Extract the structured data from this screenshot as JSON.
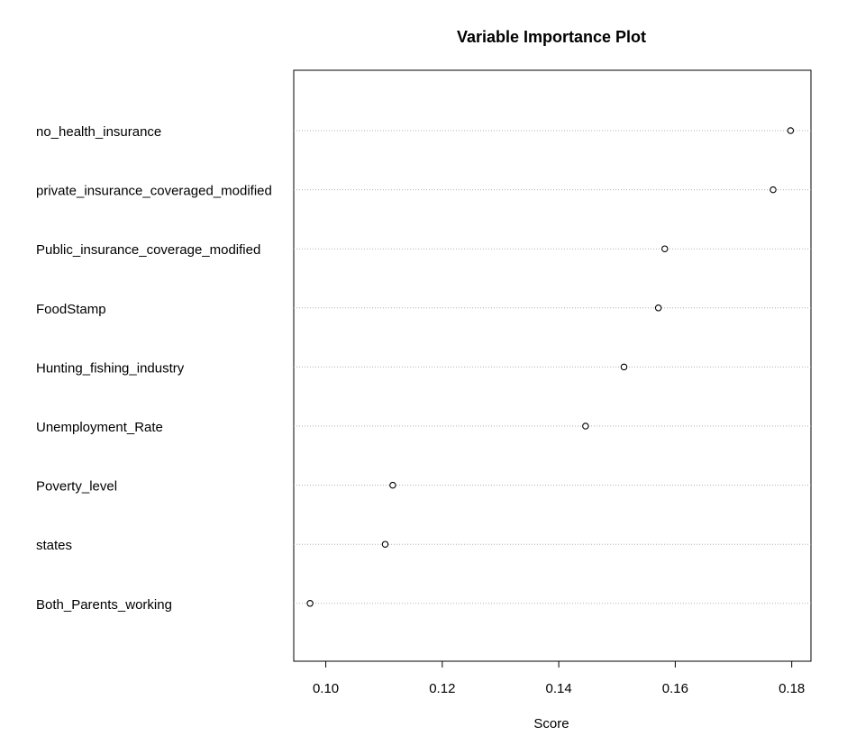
{
  "chart_data": {
    "type": "scatter",
    "title": "Variable Importance Plot",
    "xlabel": "Score",
    "ylabel": "",
    "xlim": [
      0.0945,
      0.1833
    ],
    "xticks": [
      "0.10",
      "0.12",
      "0.14",
      "0.16",
      "0.18"
    ],
    "grid": "horizontal dotted",
    "categories": [
      "no_health_insurance",
      "private_insurance_coveraged_modified",
      "Public_insurance_coverage_modified",
      "FoodStamp",
      "Hunting_fishing_industry",
      "Unemployment_Rate",
      "Poverty_level",
      "states",
      "Both_Parents_working"
    ],
    "values": [
      0.1798,
      0.1768,
      0.1582,
      0.1571,
      0.1512,
      0.1446,
      0.1115,
      0.1102,
      0.0973
    ]
  }
}
